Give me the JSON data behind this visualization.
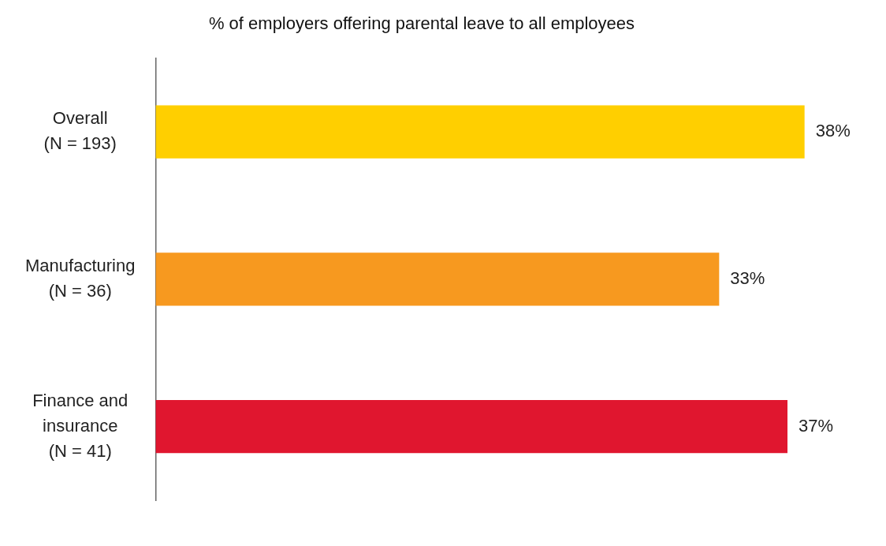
{
  "chart_data": {
    "type": "bar",
    "orientation": "horizontal",
    "title": "% of employers offering parental leave to all employees",
    "categories": [
      "Overall (N = 193)",
      "Manufacturing (N = 36)",
      "Finance and insurance (N = 41)"
    ],
    "values": [
      38,
      33,
      37
    ],
    "colors": [
      "#ffcf00",
      "#f7991f",
      "#e0162f"
    ],
    "value_labels": [
      "38%",
      "33%",
      "37%"
    ],
    "grid": false,
    "legend": false,
    "tick_labels": "y"
  }
}
